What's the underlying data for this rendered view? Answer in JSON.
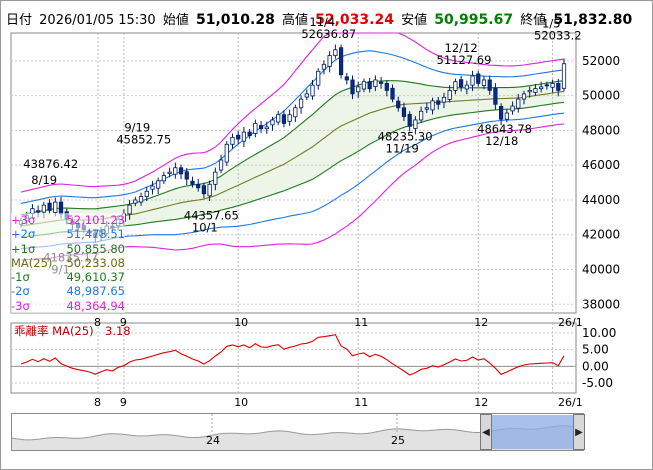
{
  "header": {
    "date_label": "日付",
    "date_value": "2026/01/05 15:30",
    "open_label": "始値",
    "open_value": "51,010.28",
    "high_label": "高値",
    "high_value": "52,033.24",
    "low_label": "安値",
    "low_value": "50,995.67",
    "close_label": "終値",
    "close_value": "51,832.80"
  },
  "legend": [
    {
      "label": "+3σ",
      "value": "52,101.23",
      "color": "#e020e0"
    },
    {
      "label": "+2σ",
      "value": "51,478.51",
      "color": "#1e78e6"
    },
    {
      "label": "+1σ",
      "value": "50,855.80",
      "color": "#1f7a1f"
    },
    {
      "label": "MA(25)",
      "value": "50,233.08",
      "color": "#6b6b10"
    },
    {
      "label": "-1σ",
      "value": "49,610.37",
      "color": "#1f7a1f"
    },
    {
      "label": "-2σ",
      "value": "48,987.65",
      "color": "#1e78e6"
    },
    {
      "label": "-3σ",
      "value": "48,364.94",
      "color": "#e020e0"
    }
  ],
  "lower_panel": {
    "label": "乖離率 MA(25)",
    "value": "3.18"
  },
  "slider": {
    "year_labels": [
      "24",
      "25"
    ],
    "left_arrow": "◀",
    "right_arrow": "▶"
  },
  "chart_data": [
    {
      "type": "candlestick",
      "x_ticks": [
        "8",
        "9",
        "10",
        "11",
        "12",
        "26/1"
      ],
      "y_ticks": [
        "38000",
        "40000",
        "42000",
        "44000",
        "46000",
        "48000",
        "50000",
        "52000"
      ],
      "ylim": [
        37500,
        53600
      ],
      "grid": true,
      "annotations": [
        {
          "date": "8/19",
          "value": "43876.42"
        },
        {
          "date": "9/1",
          "value": "41835.17"
        },
        {
          "date": "9/19",
          "value": "45852.75"
        },
        {
          "date": "10/1",
          "value": "44357.65"
        },
        {
          "date": "11/4",
          "value": "52636.87"
        },
        {
          "date": "11/19",
          "value": "48235.30"
        },
        {
          "date": "12/12",
          "value": "51127.69"
        },
        {
          "date": "12/18",
          "value": "48643.78"
        },
        {
          "date": "1/5",
          "value": "52033.2"
        }
      ],
      "close_series": [
        42800,
        43100,
        43500,
        43300,
        43700,
        43400,
        43876,
        43200,
        42900,
        42600,
        42400,
        42300,
        42100,
        41835,
        42200,
        42500,
        42400,
        42900,
        43200,
        43700,
        44000,
        44200,
        44500,
        44800,
        45100,
        45400,
        45600,
        45852,
        45500,
        45200,
        44900,
        44700,
        44357,
        44900,
        45600,
        46300,
        47200,
        47600,
        47500,
        47900,
        47700,
        48400,
        48100,
        48200,
        48600,
        48900,
        48400,
        48900,
        49300,
        49800,
        50100,
        50600,
        51400,
        51800,
        52300,
        52636,
        51200,
        50900,
        50100,
        50500,
        50800,
        50400,
        50900,
        50700,
        50300,
        49800,
        49300,
        48800,
        48235,
        48600,
        49100,
        49300,
        49700,
        49500,
        49900,
        50300,
        50800,
        50500,
        50600,
        51127,
        50700,
        50900,
        50300,
        49500,
        48643,
        49000,
        49400,
        49800,
        50100,
        50300,
        50400,
        50500,
        50600,
        50700,
        50300,
        51833
      ],
      "bands": {
        "ma25": [
          42500,
          42550,
          42600,
          42650,
          42700,
          42750,
          42800,
          42850,
          42850,
          42850,
          42850,
          42850,
          42850,
          42850,
          42900,
          42950,
          43000,
          43050,
          43100,
          43150,
          43200,
          43280,
          43360,
          43440,
          43520,
          43600,
          43680,
          43760,
          43840,
          43900,
          43950,
          44000,
          44050,
          44150,
          44250,
          44400,
          44550,
          44700,
          44850,
          45000,
          45150,
          45300,
          45450,
          45600,
          45750,
          45900,
          46050,
          46250,
          46450,
          46650,
          46850,
          47050,
          47300,
          47550,
          47800,
          48050,
          48250,
          48400,
          48550,
          48700,
          48850,
          49000,
          49100,
          49200,
          49300,
          49380,
          49450,
          49500,
          49520,
          49540,
          49560,
          49580,
          49600,
          49620,
          49640,
          49660,
          49680,
          49700,
          49720,
          49740,
          49760,
          49780,
          49800,
          49820,
          49830,
          49840,
          49850,
          49870,
          49900,
          49950,
          50000,
          50050,
          50100,
          50150,
          50200,
          50233
        ],
        "sigma": [
          650,
          660,
          670,
          680,
          690,
          700,
          700,
          690,
          680,
          670,
          660,
          650,
          640,
          640,
          630,
          620,
          610,
          600,
          600,
          610,
          630,
          660,
          690,
          720,
          760,
          800,
          840,
          880,
          900,
          910,
          910,
          900,
          890,
          900,
          930,
          980,
          1050,
          1120,
          1180,
          1230,
          1280,
          1320,
          1360,
          1400,
          1440,
          1480,
          1530,
          1590,
          1660,
          1730,
          1800,
          1860,
          1910,
          1950,
          1980,
          2000,
          1990,
          1970,
          1940,
          1900,
          1850,
          1790,
          1720,
          1640,
          1560,
          1480,
          1400,
          1320,
          1250,
          1180,
          1100,
          1020,
          950,
          890,
          840,
          800,
          770,
          750,
          730,
          710,
          690,
          670,
          650,
          640,
          630,
          620,
          620,
          620,
          620,
          620,
          620,
          620,
          620,
          620,
          620,
          623
        ]
      }
    },
    {
      "type": "line",
      "name": "乖離率 MA(25)",
      "y_ticks": [
        "10.00",
        "5.00",
        "0.00",
        "-5.00"
      ],
      "ylim": [
        -8,
        13
      ],
      "x_ticks": [
        "8",
        "9",
        "10",
        "11",
        "12",
        "26/1"
      ],
      "values": [
        0.7,
        1.3,
        2.1,
        1.4,
        2.3,
        1.5,
        2.5,
        0.8,
        0.1,
        -0.6,
        -1.0,
        -1.3,
        -1.7,
        -2.4,
        -1.6,
        -1.0,
        -1.4,
        -0.3,
        0.2,
        1.3,
        1.9,
        2.1,
        2.6,
        3.1,
        3.6,
        4.1,
        4.4,
        4.8,
        3.8,
        3.0,
        2.2,
        1.6,
        0.7,
        1.7,
        3.1,
        4.3,
        6.0,
        6.4,
        5.9,
        6.4,
        5.6,
        6.8,
        5.8,
        5.7,
        6.2,
        6.5,
        5.1,
        5.7,
        6.1,
        6.7,
        6.9,
        7.5,
        8.7,
        8.9,
        9.2,
        9.5,
        6.1,
        5.2,
        3.2,
        3.7,
        4.0,
        2.9,
        3.6,
        3.0,
        2.0,
        0.8,
        -0.3,
        -1.4,
        -2.6,
        -1.9,
        -0.9,
        -0.6,
        0.2,
        -0.2,
        0.5,
        1.3,
        2.2,
        1.6,
        1.8,
        2.8,
        1.9,
        2.3,
        1.0,
        -0.6,
        -2.4,
        -1.7,
        -0.9,
        -0.1,
        0.4,
        0.7,
        0.8,
        0.9,
        1.0,
        1.1,
        0.2,
        3.18
      ]
    }
  ]
}
